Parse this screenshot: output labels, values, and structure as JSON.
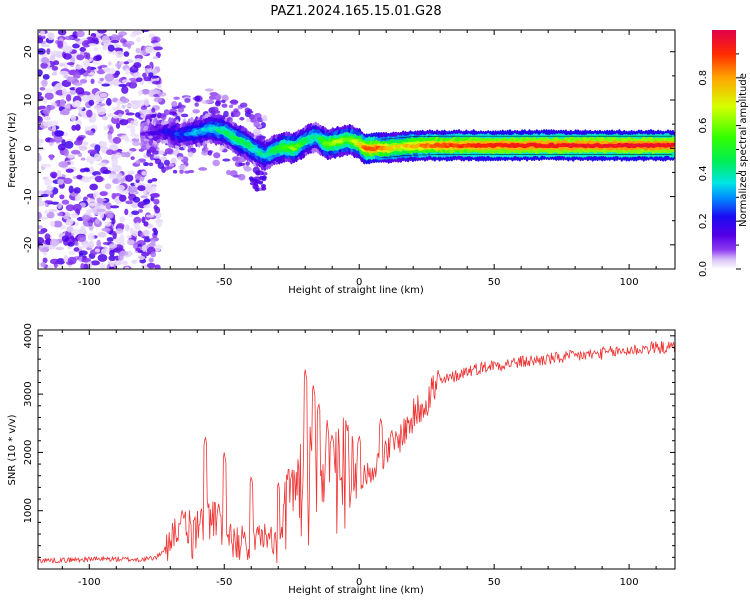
{
  "figure_title": "PAZ1.2024.165.15.01.G28",
  "colors": {
    "snr_line": "#ee3333",
    "colormap": [
      "#ffffff",
      "#d9c2f7",
      "#8d3bf0",
      "#5400e6",
      "#1a0cf2",
      "#0090ff",
      "#00e5e5",
      "#00ee55",
      "#33ff00",
      "#d6ff00",
      "#ffa500",
      "#ff2a00",
      "#e0004c"
    ]
  },
  "chart_data": [
    {
      "type": "heatmap",
      "title": "PAZ1.2024.165.15.01.G28",
      "xlabel": "Height of straight line (km)",
      "ylabel": "Frequency (Hz)",
      "xlim": [
        -119,
        117
      ],
      "ylim": [
        -25,
        24.5
      ],
      "xticks": [
        -100,
        -50,
        0,
        50,
        100
      ],
      "yticks": [
        -20,
        -10,
        0,
        10,
        20
      ],
      "ridge_x": [
        -78,
        -72,
        -66,
        -60,
        -55,
        -50,
        -46,
        -42,
        -38,
        -35,
        -32,
        -28,
        -24,
        -20,
        -16,
        -12,
        -8,
        -4,
        0,
        2,
        5,
        10,
        15,
        20,
        30,
        50,
        80,
        100,
        117
      ],
      "ridge_y": [
        3.0,
        3.5,
        2.8,
        3.3,
        4.2,
        3.5,
        2.0,
        1.0,
        -0.5,
        -1.5,
        -0.5,
        0.2,
        0.0,
        1.5,
        2.5,
        0.8,
        1.3,
        1.8,
        1.0,
        0.0,
        0.0,
        0.0,
        0.3,
        0.5,
        0.6,
        0.6,
        0.6,
        0.6,
        0.6
      ],
      "ridge_amplitude": [
        0.1,
        0.18,
        0.25,
        0.32,
        0.38,
        0.42,
        0.45,
        0.45,
        0.4,
        0.4,
        0.45,
        0.55,
        0.6,
        0.45,
        0.4,
        0.6,
        0.65,
        0.6,
        0.7,
        0.85,
        0.9,
        0.8,
        0.7,
        0.8,
        0.88,
        0.92,
        0.94,
        0.95,
        0.95
      ],
      "noise_region_x": [
        -119,
        -78
      ],
      "colorbar": {
        "label": "Normalized spectral amplitude",
        "ticks": [
          0.0,
          0.2,
          0.4,
          0.6,
          0.8
        ],
        "tick_labels": [
          "0.0",
          "0.2",
          "0.4",
          "0.6",
          "0.8"
        ],
        "range": [
          0,
          1
        ]
      }
    },
    {
      "type": "line",
      "xlabel": "Height of straight line (km)",
      "ylabel": "SNR (10 * v/v)",
      "xlim": [
        -119,
        117
      ],
      "ylim": [
        0,
        4100
      ],
      "xticks": [
        -100,
        -50,
        0,
        50,
        100
      ],
      "yticks": [
        1000,
        2000,
        3000,
        4000
      ],
      "series": [
        {
          "x": [
            -119,
            -110,
            -100,
            -90,
            -80,
            -75,
            -72,
            -70,
            -68,
            -65,
            -60,
            -55,
            -50,
            -45,
            -40,
            -35,
            -30,
            -28,
            -25,
            -22,
            -20,
            -18,
            -15,
            -12,
            -10,
            -5,
            -2,
            0,
            2,
            5,
            8,
            10,
            15,
            20,
            25,
            30,
            35,
            40,
            50,
            60,
            70,
            80,
            90,
            100,
            110,
            117
          ],
          "y": [
            150,
            150,
            170,
            170,
            160,
            200,
            350,
            550,
            700,
            700,
            750,
            900,
            700,
            550,
            480,
            580,
            420,
            900,
            1400,
            1500,
            1900,
            1700,
            1800,
            1850,
            1800,
            1900,
            1700,
            1500,
            1600,
            1700,
            1900,
            2000,
            2250,
            2600,
            2950,
            3200,
            3300,
            3400,
            3500,
            3550,
            3600,
            3650,
            3700,
            3750,
            3800,
            3800
          ],
          "peaks_x": [
            -57,
            -50,
            -40,
            -30,
            -27,
            -20,
            -17,
            -15,
            -10,
            -5,
            0,
            8,
            12
          ],
          "peaks_y": [
            2280,
            2000,
            1600,
            1500,
            1650,
            3420,
            3150,
            2850,
            2320,
            2550,
            2300,
            2600,
            2400
          ]
        }
      ]
    }
  ]
}
